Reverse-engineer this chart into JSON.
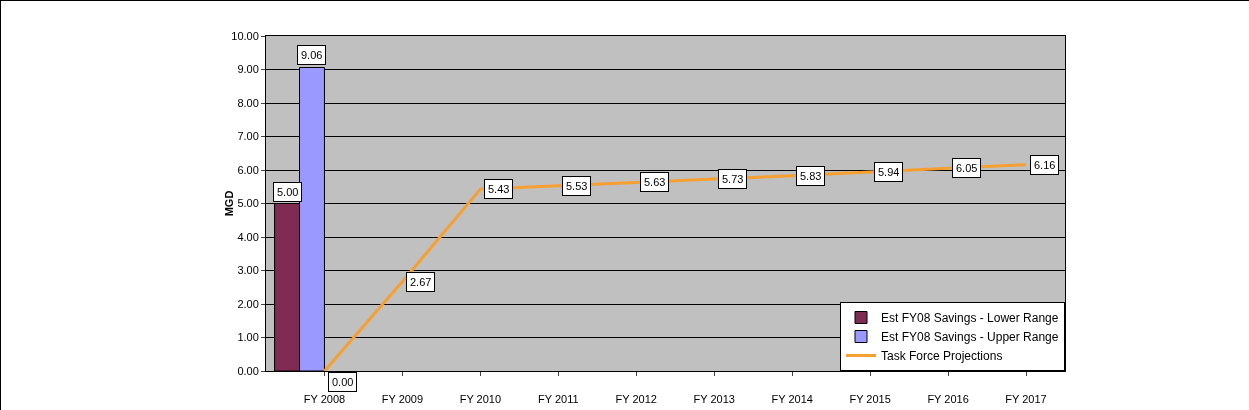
{
  "chart_data": {
    "type": "bar",
    "ylabel": "MGD",
    "categories": [
      "FY 2008",
      "FY 2009",
      "FY 2010",
      "FY 2011",
      "FY 2012",
      "FY 2013",
      "FY 2014",
      "FY 2015",
      "FY 2016",
      "FY 2017"
    ],
    "series": [
      {
        "name": "Est FY08 Savings - Lower Range",
        "color": "#7f2b52",
        "values": [
          5.0,
          null,
          null,
          null,
          null,
          null,
          null,
          null,
          null,
          null
        ],
        "value_labels": [
          "5.00",
          null,
          null,
          null,
          null,
          null,
          null,
          null,
          null,
          null
        ]
      },
      {
        "name": "Est FY08 Savings - Upper Range",
        "color": "#9999ff",
        "values": [
          9.06,
          null,
          null,
          null,
          null,
          null,
          null,
          null,
          null,
          null
        ],
        "value_labels": [
          "9.06",
          null,
          null,
          null,
          null,
          null,
          null,
          null,
          null,
          null
        ]
      },
      {
        "name": "Task Force Projections",
        "type": "line",
        "color": "#f5a030",
        "values": [
          0.0,
          2.67,
          5.43,
          5.53,
          5.63,
          5.73,
          5.83,
          5.94,
          6.05,
          6.16
        ],
        "value_labels": [
          "0.00",
          "2.67",
          "5.43",
          "5.53",
          "5.63",
          "5.73",
          "5.83",
          "5.94",
          "6.05",
          "6.16"
        ]
      }
    ],
    "ylim": [
      0,
      10
    ],
    "yticks": [
      {
        "value": 0,
        "label": "0.00"
      },
      {
        "value": 1,
        "label": "1.00"
      },
      {
        "value": 2,
        "label": "2.00"
      },
      {
        "value": 3,
        "label": "3.00"
      },
      {
        "value": 4,
        "label": "4.00"
      },
      {
        "value": 5,
        "label": "5.00"
      },
      {
        "value": 6,
        "label": "6.00"
      },
      {
        "value": 7,
        "label": "7.00"
      },
      {
        "value": 8,
        "label": "8.00"
      },
      {
        "value": 9,
        "label": "9.00"
      },
      {
        "value": 10,
        "label": "10.00"
      }
    ],
    "grid": "y",
    "legend": "bottom right",
    "marker": "none",
    "line_style": "solid"
  }
}
